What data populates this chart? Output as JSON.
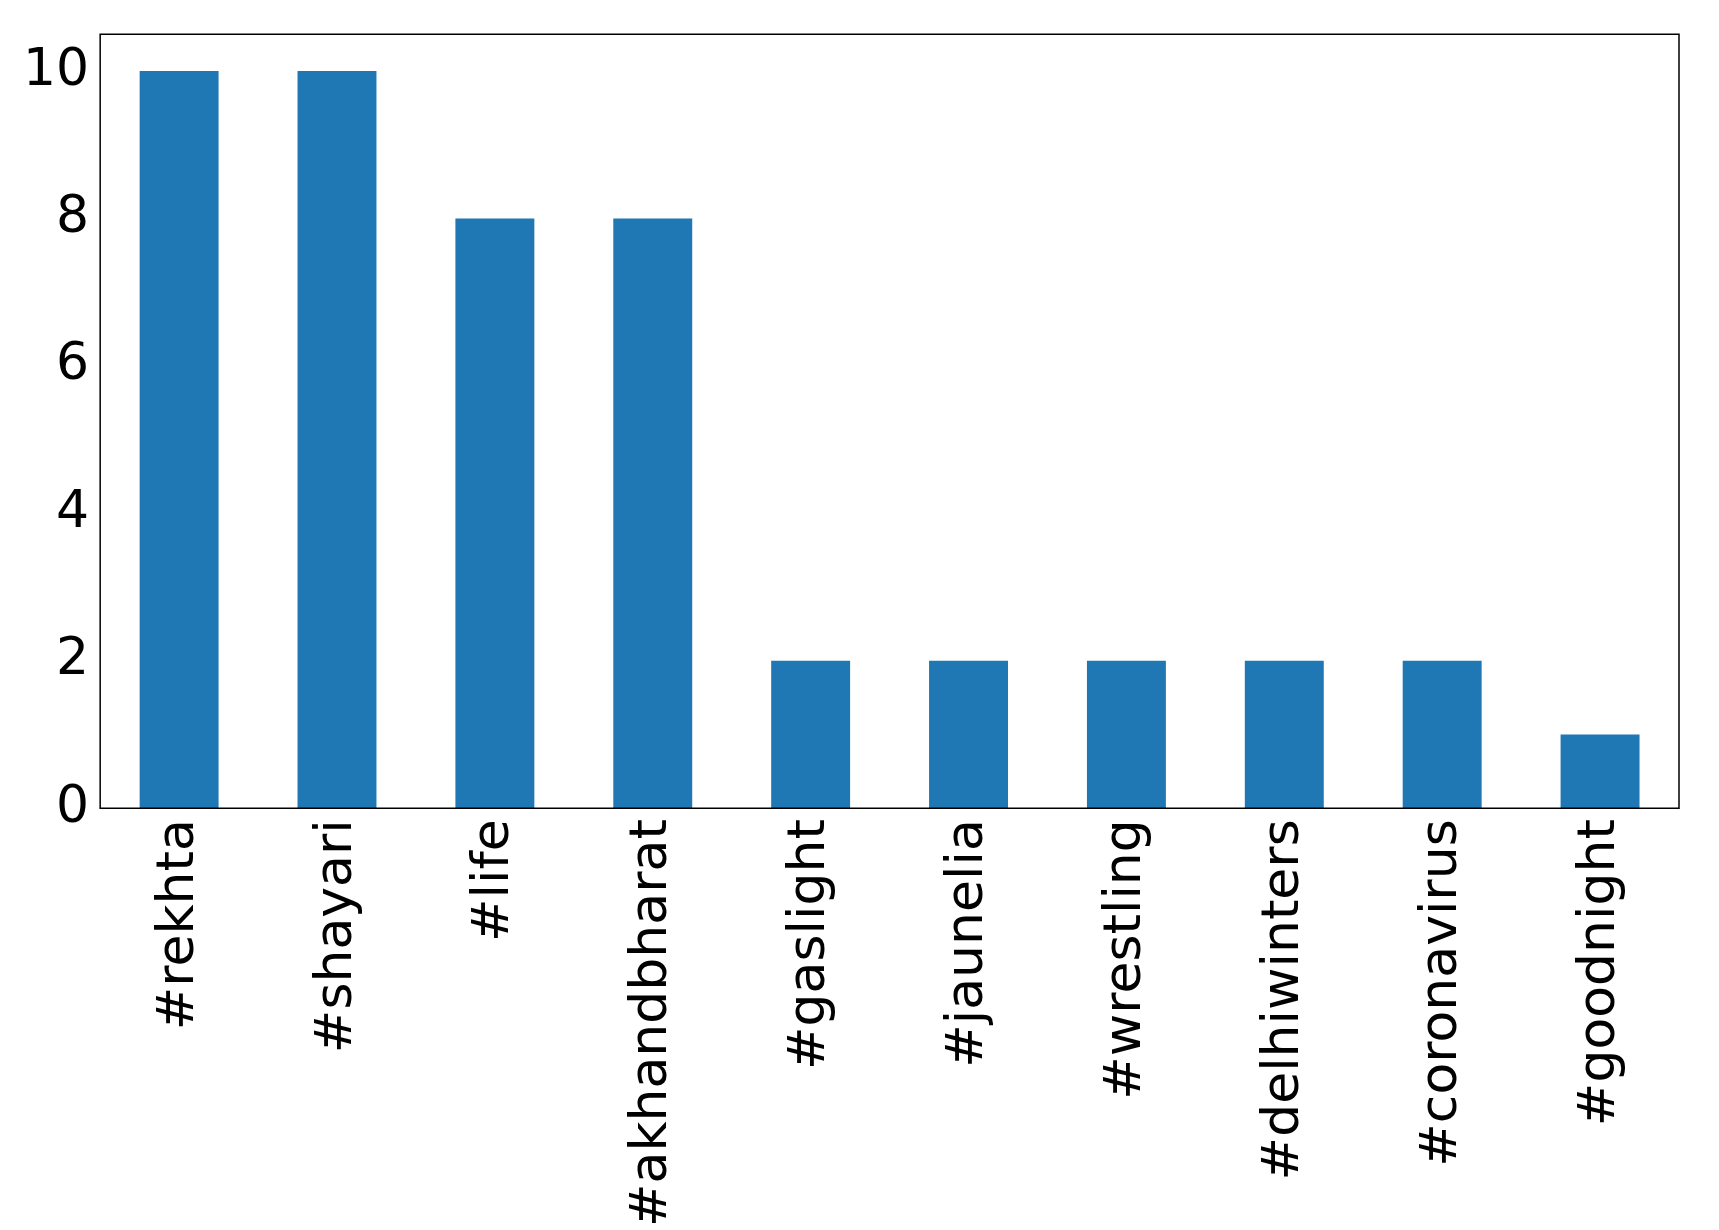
{
  "chart_data": {
    "type": "bar",
    "categories": [
      "#rekhta",
      "#shayari",
      "#life",
      "#akhandbharat",
      "#gaslight",
      "#jaunelia",
      "#wrestling",
      "#delhiwinters",
      "#coronavirus",
      "#goodnight"
    ],
    "values": [
      10,
      10,
      8,
      8,
      2,
      2,
      2,
      2,
      2,
      1
    ],
    "color": "#1f77b4",
    "ylim": [
      0,
      10.5
    ],
    "yticks": [
      0,
      2,
      4,
      6,
      8,
      10
    ],
    "grid": false,
    "legend": false
  }
}
